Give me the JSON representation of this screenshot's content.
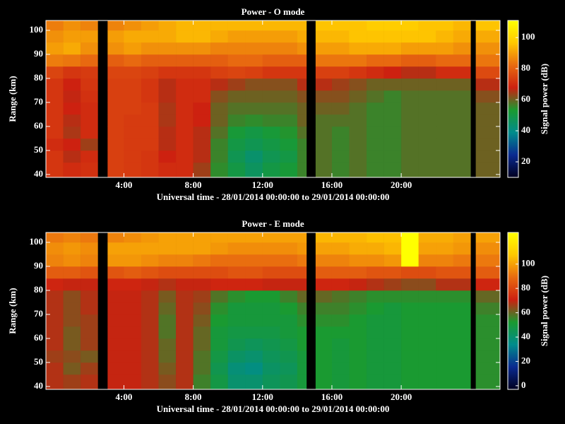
{
  "chart_data": [
    {
      "type": "heatmap",
      "title": "Power - O mode",
      "xlabel": "Universal time - 28/01/2014 00:00:00 to 29/01/2014 00:00:00",
      "ylabel": "Range (km)",
      "colorbar_label": "Signal power (dB)",
      "xlim": [
        -0.5,
        25.7
      ],
      "ylim": [
        38.8,
        104.1
      ],
      "xticks": [
        {
          "value": 4,
          "label": "4:00"
        },
        {
          "value": 8,
          "label": "8:00"
        },
        {
          "value": 12,
          "label": "12:00"
        },
        {
          "value": 16,
          "label": "16:00"
        },
        {
          "value": 20,
          "label": "20:00"
        }
      ],
      "yticks": [
        40,
        50,
        60,
        70,
        80,
        90,
        100
      ],
      "clim": [
        10,
        111
      ],
      "cticks": [
        20,
        40,
        60,
        80,
        100
      ],
      "colormap": [
        "#000020",
        "#0a2a90",
        "#008c8c",
        "#1a9a30",
        "#cc2010",
        "#e86a10",
        "#ffc800",
        "#ffff00"
      ],
      "xbins": [
        -0.5,
        0.5,
        1.5,
        2.49,
        3.06,
        4,
        5,
        6,
        7,
        8,
        9,
        10,
        11,
        12,
        13,
        14,
        14.53,
        15.06,
        16,
        17,
        18,
        19,
        20,
        21,
        22,
        23,
        24,
        24.3,
        25.7
      ],
      "ybins": [
        38.8,
        45,
        50,
        55,
        60,
        65,
        70,
        75,
        80,
        85,
        90,
        95,
        100,
        104.1
      ],
      "z": [
        [
          72,
          72,
          70,
          72,
          72,
          72,
          72,
          72,
          75,
          85,
          90,
          88,
          85
        ],
        [
          70,
          66,
          68,
          65,
          66,
          68,
          67,
          68,
          72,
          84,
          92,
          90,
          88
        ],
        [
          71,
          70,
          64,
          70,
          70,
          70,
          71,
          72,
          73,
          82,
          88,
          90,
          86
        ],
        [
          null,
          null,
          null,
          null,
          null,
          null,
          null,
          null,
          null,
          null,
          null,
          null,
          null
        ],
        [
          74,
          74,
          74,
          74,
          74,
          74,
          74,
          74,
          75,
          80,
          88,
          90,
          86
        ],
        [
          73,
          73,
          73,
          73,
          73,
          74,
          74,
          74,
          75,
          82,
          90,
          92,
          88
        ],
        [
          72,
          72,
          73,
          73,
          73,
          73,
          72,
          72,
          74,
          80,
          88,
          92,
          90
        ],
        [
          70,
          68,
          66,
          66,
          65,
          65,
          66,
          66,
          72,
          80,
          88,
          92,
          92
        ],
        [
          70,
          70,
          70,
          70,
          70,
          70,
          70,
          70,
          72,
          80,
          88,
          94,
          94
        ],
        [
          64,
          66,
          66,
          66,
          68,
          68,
          70,
          70,
          72,
          80,
          88,
          94,
          94
        ],
        [
          55,
          56,
          56,
          58,
          60,
          60,
          62,
          66,
          74,
          80,
          86,
          92,
          94
        ],
        [
          50,
          48,
          50,
          52,
          56,
          58,
          60,
          64,
          75,
          82,
          86,
          90,
          94
        ],
        [
          46,
          44,
          48,
          50,
          55,
          58,
          60,
          62,
          74,
          82,
          86,
          90,
          94
        ],
        [
          50,
          48,
          50,
          52,
          56,
          58,
          60,
          62,
          72,
          80,
          86,
          90,
          94
        ],
        [
          52,
          50,
          52,
          54,
          56,
          58,
          60,
          62,
          72,
          80,
          86,
          90,
          94
        ],
        [
          56,
          56,
          56,
          58,
          60,
          60,
          62,
          66,
          72,
          80,
          88,
          92,
          94
        ],
        [
          null,
          null,
          null,
          null,
          null,
          null,
          null,
          null,
          null,
          null,
          null,
          null,
          null
        ],
        [
          58,
          58,
          58,
          58,
          58,
          60,
          62,
          66,
          74,
          84,
          90,
          94,
          96
        ],
        [
          56,
          56,
          56,
          56,
          58,
          60,
          62,
          64,
          74,
          84,
          90,
          94,
          96
        ],
        [
          58,
          58,
          58,
          58,
          58,
          58,
          60,
          62,
          72,
          84,
          92,
          96,
          96
        ],
        [
          56,
          56,
          56,
          56,
          56,
          56,
          58,
          60,
          70,
          82,
          92,
          96,
          98
        ],
        [
          56,
          56,
          56,
          56,
          56,
          56,
          56,
          60,
          68,
          82,
          92,
          96,
          98
        ],
        [
          58,
          58,
          58,
          58,
          58,
          58,
          58,
          60,
          66,
          80,
          90,
          96,
          98
        ],
        [
          58,
          58,
          58,
          58,
          58,
          58,
          58,
          60,
          66,
          80,
          90,
          96,
          96
        ],
        [
          58,
          58,
          58,
          58,
          58,
          58,
          58,
          60,
          70,
          82,
          90,
          94,
          96
        ],
        [
          58,
          58,
          58,
          58,
          58,
          58,
          58,
          60,
          70,
          82,
          88,
          92,
          94
        ],
        [
          null,
          null,
          null,
          null,
          null,
          null,
          null,
          null,
          null,
          null,
          null,
          null,
          null
        ],
        [
          60,
          60,
          60,
          60,
          60,
          60,
          62,
          66,
          76,
          84,
          88,
          92,
          96
        ]
      ]
    },
    {
      "type": "heatmap",
      "title": "Power - E mode",
      "xlabel": "Universal time - 28/01/2014 00:00:00 to 29/01/2014 00:00:00",
      "ylabel": "Range (km)",
      "colorbar_label": "Signal power (dB)",
      "xlim": [
        -0.5,
        25.7
      ],
      "ylim": [
        38.8,
        104.1
      ],
      "xticks": [
        {
          "value": 4,
          "label": "4:00"
        },
        {
          "value": 8,
          "label": "8:00"
        },
        {
          "value": 12,
          "label": "12:00"
        },
        {
          "value": 16,
          "label": "16:00"
        },
        {
          "value": 20,
          "label": "20:00"
        }
      ],
      "yticks": [
        40,
        50,
        60,
        70,
        80,
        90,
        100
      ],
      "clim": [
        -3,
        126
      ],
      "cticks": [
        0,
        20,
        40,
        60,
        80,
        100
      ],
      "colormap": [
        "#000020",
        "#0a2a90",
        "#008c8c",
        "#1a9a30",
        "#cc2010",
        "#e86a10",
        "#ffc800",
        "#ffff00"
      ],
      "xbins": [
        -0.5,
        0.5,
        1.5,
        2.49,
        3.06,
        4,
        5,
        6,
        7,
        8,
        9,
        10,
        11,
        12,
        13,
        14,
        14.53,
        15.06,
        16,
        17,
        18,
        19,
        20,
        21,
        22,
        23,
        24,
        24.3,
        25.7
      ],
      "ybins": [
        38.8,
        45,
        50,
        55,
        60,
        65,
        70,
        75,
        80,
        85,
        90,
        95,
        100,
        104.1
      ],
      "z": [
        [
          68,
          68,
          66,
          68,
          68,
          68,
          68,
          68,
          72,
          86,
          94,
          96,
          92
        ],
        [
          66,
          62,
          64,
          62,
          62,
          64,
          64,
          64,
          70,
          86,
          96,
          98,
          94
        ],
        [
          68,
          66,
          62,
          66,
          66,
          66,
          68,
          68,
          70,
          84,
          94,
          96,
          92
        ],
        [
          null,
          null,
          null,
          null,
          null,
          null,
          null,
          null,
          null,
          null,
          null,
          null,
          null
        ],
        [
          70,
          70,
          70,
          70,
          70,
          70,
          70,
          70,
          72,
          84,
          98,
          100,
          94
        ],
        [
          70,
          70,
          70,
          70,
          70,
          70,
          70,
          70,
          72,
          86,
          98,
          100,
          96
        ],
        [
          68,
          68,
          68,
          68,
          68,
          68,
          68,
          68,
          70,
          84,
          96,
          100,
          98
        ],
        [
          64,
          62,
          60,
          60,
          58,
          58,
          60,
          62,
          68,
          82,
          94,
          100,
          100
        ],
        [
          68,
          68,
          68,
          68,
          68,
          68,
          68,
          68,
          70,
          82,
          94,
          100,
          100
        ],
        [
          56,
          58,
          58,
          60,
          60,
          62,
          64,
          66,
          70,
          82,
          92,
          100,
          100
        ],
        [
          48,
          46,
          48,
          50,
          50,
          52,
          54,
          58,
          72,
          82,
          90,
          98,
          100
        ],
        [
          40,
          38,
          42,
          46,
          48,
          50,
          50,
          54,
          72,
          84,
          90,
          96,
          100
        ],
        [
          40,
          36,
          40,
          44,
          48,
          50,
          50,
          52,
          72,
          84,
          90,
          96,
          100
        ],
        [
          44,
          42,
          44,
          46,
          48,
          50,
          50,
          52,
          70,
          82,
          90,
          96,
          100
        ],
        [
          46,
          44,
          46,
          48,
          50,
          50,
          52,
          56,
          70,
          82,
          90,
          96,
          100
        ],
        [
          50,
          50,
          50,
          52,
          52,
          54,
          56,
          60,
          70,
          82,
          92,
          98,
          100
        ],
        [
          null,
          null,
          null,
          null,
          null,
          null,
          null,
          null,
          null,
          null,
          null,
          null,
          null
        ],
        [
          52,
          52,
          52,
          52,
          52,
          54,
          56,
          60,
          72,
          86,
          94,
          100,
          104
        ],
        [
          50,
          50,
          50,
          50,
          52,
          54,
          56,
          58,
          72,
          86,
          94,
          100,
          104
        ],
        [
          52,
          52,
          52,
          52,
          52,
          52,
          54,
          56,
          70,
          86,
          96,
          102,
          104
        ],
        [
          50,
          50,
          50,
          50,
          50,
          50,
          52,
          54,
          68,
          84,
          96,
          102,
          106
        ],
        [
          50,
          50,
          50,
          50,
          50,
          50,
          50,
          54,
          66,
          84,
          98,
          104,
          106
        ],
        [
          52,
          52,
          52,
          52,
          52,
          52,
          52,
          54,
          64,
          82,
          126,
          126,
          126
        ],
        [
          52,
          52,
          52,
          52,
          52,
          52,
          52,
          54,
          64,
          82,
          94,
          100,
          102
        ],
        [
          52,
          52,
          52,
          52,
          52,
          52,
          52,
          54,
          68,
          84,
          94,
          100,
          102
        ],
        [
          52,
          52,
          52,
          52,
          52,
          52,
          52,
          54,
          68,
          84,
          92,
          98,
          100
        ],
        [
          null,
          null,
          null,
          null,
          null,
          null,
          null,
          null,
          null,
          null,
          null,
          null,
          null
        ],
        [
          54,
          54,
          54,
          54,
          54,
          54,
          56,
          60,
          72,
          86,
          92,
          96,
          100
        ]
      ]
    }
  ]
}
